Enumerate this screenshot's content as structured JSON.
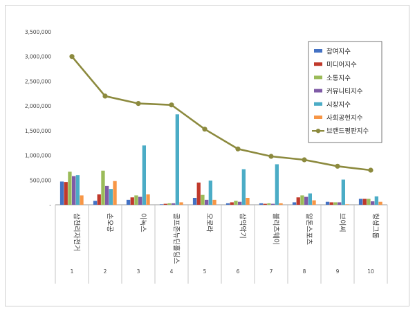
{
  "chart_data": {
    "type": "bar",
    "categories": [
      "삼천리자전거",
      "손오공",
      "이녹스",
      "골프존뉴딘홀딩스",
      "오로라",
      "삼익악기",
      "블리츠웨이",
      "알톤스포츠",
      "브이씨",
      "헝셩그룹"
    ],
    "ranks": [
      "1",
      "2",
      "3",
      "4",
      "5",
      "6",
      "7",
      "8",
      "9",
      "10"
    ],
    "ylim": [
      0,
      3500000
    ],
    "yticks": [
      0,
      500000,
      1000000,
      1500000,
      2000000,
      2500000,
      3000000,
      3500000
    ],
    "ytick_labels": [
      "-",
      "500,000",
      "1,000,000",
      "1,500,000",
      "2,000,000",
      "2,500,000",
      "3,000,000",
      "3,500,000"
    ],
    "legend_position": "top-right",
    "series": [
      {
        "name": "참여지수",
        "type": "bar",
        "color": "#4472C4",
        "values": [
          470000,
          80000,
          100000,
          10000,
          140000,
          30000,
          30000,
          50000,
          60000,
          120000
        ]
      },
      {
        "name": "미디어지수",
        "type": "bar",
        "color": "#C0392B",
        "values": [
          460000,
          210000,
          150000,
          20000,
          450000,
          50000,
          20000,
          150000,
          50000,
          120000
        ]
      },
      {
        "name": "소통지수",
        "type": "bar",
        "color": "#9BBB59",
        "values": [
          670000,
          690000,
          190000,
          30000,
          200000,
          80000,
          30000,
          190000,
          50000,
          120000
        ]
      },
      {
        "name": "커뮤니티지수",
        "type": "bar",
        "color": "#7F5BA6",
        "values": [
          580000,
          380000,
          160000,
          30000,
          100000,
          60000,
          20000,
          160000,
          50000,
          70000
        ]
      },
      {
        "name": "시장지수",
        "type": "bar",
        "color": "#4BACC6",
        "values": [
          600000,
          320000,
          1200000,
          1830000,
          490000,
          720000,
          820000,
          230000,
          510000,
          170000
        ]
      },
      {
        "name": "사회공헌지수",
        "type": "bar",
        "color": "#F79646",
        "values": [
          190000,
          480000,
          210000,
          50000,
          100000,
          140000,
          30000,
          90000,
          10000,
          60000
        ]
      },
      {
        "name": "브랜드평판지수",
        "type": "line",
        "color": "#8C8A3E",
        "values": [
          3000000,
          2200000,
          2050000,
          2020000,
          1530000,
          1130000,
          980000,
          910000,
          780000,
          700000
        ]
      }
    ]
  }
}
